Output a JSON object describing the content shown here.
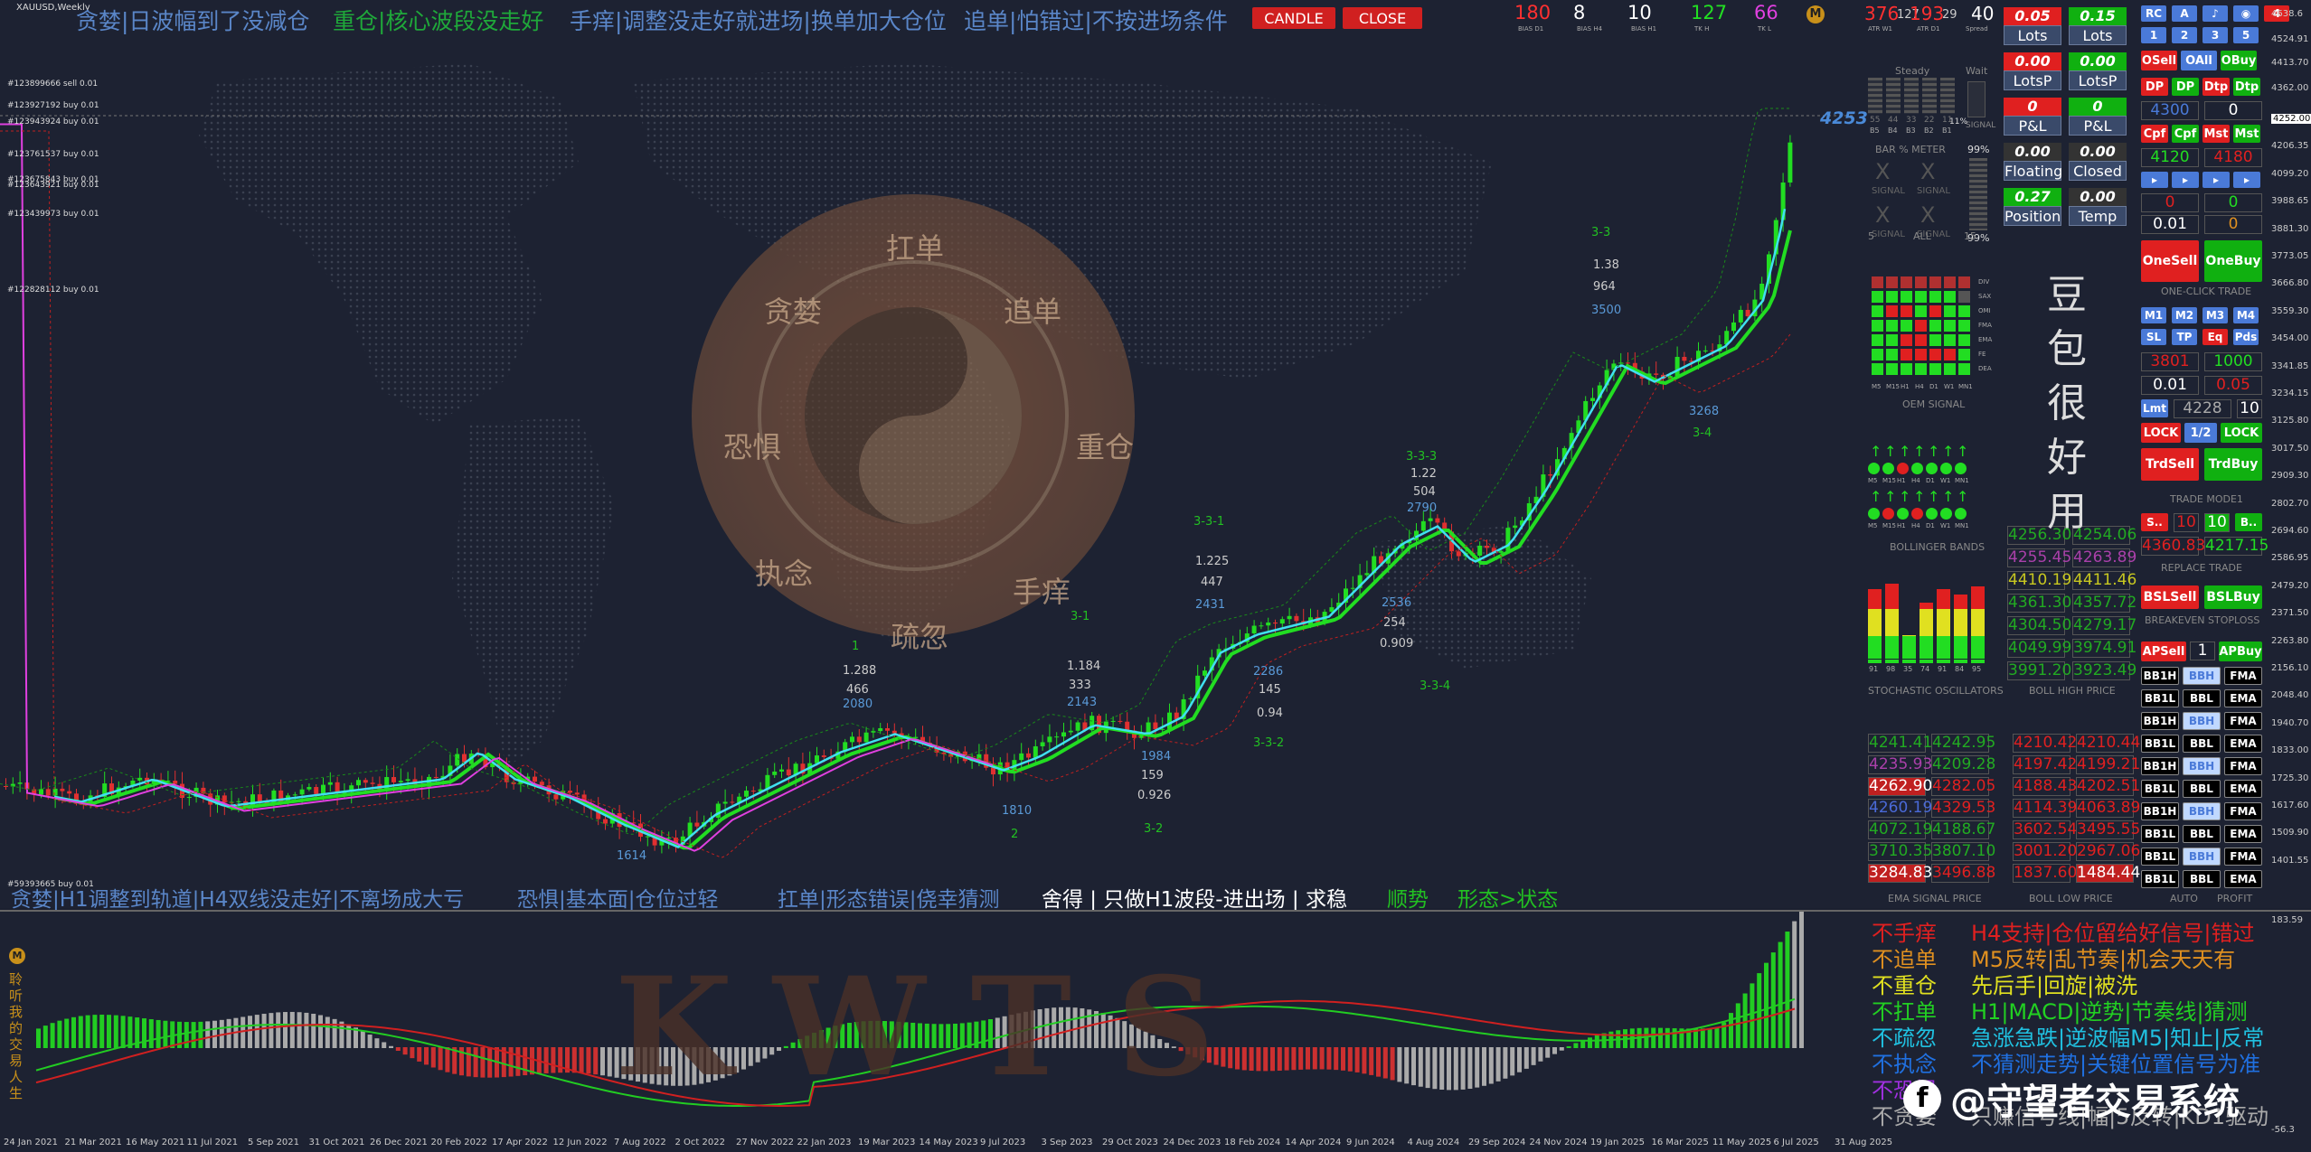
{
  "window_title": "XAUUSD,Weekly",
  "header": {
    "slogans": [
      {
        "text": "贪婪|日波幅到了没减仓",
        "color": "#5a86c8"
      },
      {
        "text": "重仓|核心波段没走好",
        "color": "#1fa83a"
      },
      {
        "text": "手痒|调整没走好就进场|换单加大仓位",
        "color": "#5a86c8"
      },
      {
        "text": "追单|怕错过|不按进场条件",
        "color": "#5a86c8"
      }
    ],
    "candle_button": "CANDLE",
    "close_button": "CLOSE",
    "bias": [
      {
        "value": "180",
        "label": "BIAS D1",
        "color": "#ff3030"
      },
      {
        "value": "8",
        "label": "BIAS H4",
        "color": "#ffffff"
      },
      {
        "value": "10",
        "label": "BIAS H1",
        "color": "#ffffff"
      },
      {
        "value": "127",
        "label": "TK H",
        "color": "#22e022"
      },
      {
        "value": "66",
        "label": "TK L",
        "color": "#e040e0"
      }
    ],
    "atr": {
      "w1": "376",
      "w1_sub": "127",
      "d1": "193",
      "d1_sub": "29",
      "spread": "40",
      "w1_label": "ATR W1",
      "d1_label": "ATR D1",
      "spread_label": "Spread"
    }
  },
  "bottom_slogans": [
    {
      "text": "贪婪|H1调整到轨道|H4双线没走好|不离场成大亏",
      "color": "#5a86c8"
    },
    {
      "text": "恐惧|基本面|仓位过轻",
      "color": "#5a86c8"
    },
    {
      "text": "扛单|形态错误|侥幸猜测",
      "color": "#5a86c8"
    },
    {
      "text": "舍得 | 只做H1波段-进出场 | 求稳",
      "color": "#ffffff"
    },
    {
      "text": "顺势",
      "color": "#22c022"
    },
    {
      "text": "形态>状态",
      "color": "#22c022"
    }
  ],
  "medallion": {
    "center": "扛单",
    "chars": [
      "贪婪",
      "追单",
      "重仓",
      "手痒",
      "疏忽",
      "执念",
      "恐惧"
    ]
  },
  "orders": [
    "#123899666 sell 0.01",
    "#123927192 buy 0.01",
    "#123943924 buy 0.01",
    "#123761537 buy 0.01",
    "#123675843 buy 0.01",
    "#123643921 buy 0.01",
    "#123439973 buy 0.01",
    "#122828112 buy 0.01",
    "#59393665 buy 0.01"
  ],
  "current_price": "4253",
  "chart_labels": [
    {
      "t": "1",
      "c": "#22c022"
    },
    {
      "t": "1.288",
      "c": "#ccc"
    },
    {
      "t": "466",
      "c": "#ccc"
    },
    {
      "t": "2080",
      "c": "#5a9ad8"
    },
    {
      "t": "1.184",
      "c": "#ccc"
    },
    {
      "t": "333",
      "c": "#ccc"
    },
    {
      "t": "2143",
      "c": "#5a9ad8"
    },
    {
      "t": "3-1",
      "c": "#22c022"
    },
    {
      "t": "3-3-1",
      "c": "#22c022"
    },
    {
      "t": "1.225",
      "c": "#ccc"
    },
    {
      "t": "447",
      "c": "#ccc"
    },
    {
      "t": "2431",
      "c": "#5a9ad8"
    },
    {
      "t": "2286",
      "c": "#5a9ad8"
    },
    {
      "t": "145",
      "c": "#ccc"
    },
    {
      "t": "0.94",
      "c": "#ccc"
    },
    {
      "t": "3-3-2",
      "c": "#22c022"
    },
    {
      "t": "1984",
      "c": "#5a9ad8"
    },
    {
      "t": "159",
      "c": "#ccc"
    },
    {
      "t": "0.926",
      "c": "#ccc"
    },
    {
      "t": "3-2",
      "c": "#22c022"
    },
    {
      "t": "1810",
      "c": "#5a9ad8"
    },
    {
      "t": "2",
      "c": "#22c022"
    },
    {
      "t": "1614",
      "c": "#5a9ad8"
    },
    {
      "t": "3-3-3",
      "c": "#22c022"
    },
    {
      "t": "1.22",
      "c": "#ccc"
    },
    {
      "t": "504",
      "c": "#ccc"
    },
    {
      "t": "2790",
      "c": "#5a9ad8"
    },
    {
      "t": "2536",
      "c": "#5a9ad8"
    },
    {
      "t": "254",
      "c": "#ccc"
    },
    {
      "t": "0.909",
      "c": "#ccc"
    },
    {
      "t": "3-3-4",
      "c": "#22c022"
    },
    {
      "t": "3-3",
      "c": "#22c022"
    },
    {
      "t": "1.38",
      "c": "#ccc"
    },
    {
      "t": "964",
      "c": "#ccc"
    },
    {
      "t": "3500",
      "c": "#5a9ad8"
    },
    {
      "t": "3268",
      "c": "#5a9ad8"
    },
    {
      "t": "3-4",
      "c": "#22c022"
    }
  ],
  "price_axis": [
    "4638.6",
    "4524.91",
    "4413.70",
    "4362.00",
    "4252.00",
    "4206.35",
    "4099.20",
    "3988.65",
    "3881.30",
    "3773.05",
    "3666.80",
    "3559.30",
    "3454.00",
    "3341.85",
    "3234.15",
    "3125.80",
    "3017.50",
    "2909.30",
    "2802.70",
    "2694.60",
    "2586.95",
    "2479.20",
    "2371.50",
    "2263.80",
    "2156.10",
    "2048.40",
    "1940.70",
    "1833.00",
    "1725.30",
    "1617.60",
    "1509.90",
    "1401.55",
    "183.59",
    "-56.3"
  ],
  "date_axis": [
    "24 Jan 2021",
    "21 Mar 2021",
    "16 May 2021",
    "11 Jul 2021",
    "5 Sep 2021",
    "31 Oct 2021",
    "26 Dec 2021",
    "20 Feb 2022",
    "17 Apr 2022",
    "12 Jun 2022",
    "7 Aug 2022",
    "2 Oct 2022",
    "27 Nov 2022",
    "22 Jan 2023",
    "19 Mar 2023",
    "14 May 2023",
    "9 Jul 2023",
    "3 Sep 2023",
    "29 Oct 2023",
    "24 Dec 2023",
    "18 Feb 2024",
    "14 Apr 2024",
    "9 Jun 2024",
    "4 Aug 2024",
    "29 Sep 2024",
    "24 Nov 2024",
    "19 Jan 2025",
    "16 Mar 2025",
    "11 May 2025",
    "6 Jul 2025",
    "31 Aug 2025"
  ],
  "panel": {
    "steady": "Steady",
    "wait": "Wait",
    "bar_meter": "BAR % METER",
    "signal": "SIGNAL",
    "all": "ALL",
    "pct1": "99%",
    "pct2": "99%",
    "pct3": "11%",
    "five": "5",
    "fifteen": "15",
    "meter_vals": [
      "55",
      "44",
      "33",
      "22",
      "11"
    ],
    "meter_labels": [
      "B5",
      "B4",
      "B3",
      "B2",
      "B1"
    ],
    "lots": [
      {
        "v": "0.05",
        "l": "Lots",
        "c": "#e02020"
      },
      {
        "v": "0.15",
        "l": "Lots",
        "c": "#10b010"
      }
    ],
    "lotsp": [
      {
        "v": "0.00",
        "l": "LotsP",
        "c": "#e02020"
      },
      {
        "v": "0.00",
        "l": "LotsP",
        "c": "#10b010"
      }
    ],
    "pl": [
      {
        "v": "0",
        "l": "P&L",
        "c": "#e02020"
      },
      {
        "v": "0",
        "l": "P&L",
        "c": "#10b010"
      }
    ],
    "floating": [
      {
        "v": "0.00",
        "l": "Floating",
        "c": "#333"
      },
      {
        "v": "0.00",
        "l": "Closed",
        "c": "#333"
      }
    ],
    "position": [
      {
        "v": "0.27",
        "l": "Position",
        "c": "#10b010"
      },
      {
        "v": "0.00",
        "l": "Temp",
        "c": "#333"
      }
    ],
    "oem_rows": [
      "DIV",
      "SAX",
      "OMI",
      "FMA",
      "EMA",
      "FE",
      "DEA"
    ],
    "oem_cols": [
      "M5",
      "M15",
      "H1",
      "H4",
      "D1",
      "W1",
      "MN1"
    ],
    "oem_label": "OEM SIGNAL",
    "bb_label": "BOLLINGER BANDS",
    "stoch_label": "STOCHASTIC OSCILLATORS",
    "stoch_cols": [
      "91",
      "98",
      "35",
      "74",
      "91",
      "84",
      "95"
    ],
    "side_text": [
      "豆",
      "包",
      "很",
      "好",
      "用"
    ],
    "bb_high_label": "BOLL HIGH PRICE",
    "bb_low_label": "BOLL LOW PRICE",
    "ema_label": "EMA SIGNAL PRICE",
    "bb_prices_left": [
      "4256.30",
      "4255.45",
      "4410.19",
      "4361.30",
      "4304.50",
      "4049.99",
      "3991.20"
    ],
    "bb_prices_right": [
      "4254.06",
      "4263.89",
      "4411.46",
      "4357.72",
      "4279.17",
      "3974.91",
      "3923.49"
    ],
    "ema_rows": [
      [
        "4241.41",
        "4242.95",
        "4210.42",
        "4210.44"
      ],
      [
        "4235.93",
        "4209.28",
        "4197.42",
        "4199.21"
      ],
      [
        "4262.90",
        "4282.05",
        "4188.43",
        "4202.51"
      ],
      [
        "4260.19",
        "4329.53",
        "4114.39",
        "4063.89"
      ],
      [
        "4072.19",
        "4188.67",
        "3602.54",
        "3495.55"
      ],
      [
        "3710.35",
        "3807.10",
        "3001.20",
        "2967.06"
      ],
      [
        "3284.83",
        "3496.88",
        "1837.60",
        "1484.44"
      ]
    ]
  },
  "right_panel": {
    "row1": [
      "RC",
      "A",
      "♪",
      "◉",
      "4"
    ],
    "row2": [
      "1",
      "2",
      "3",
      "5"
    ],
    "row3": [
      "OSell",
      "OAll",
      "OBuy"
    ],
    "row4": [
      "DP",
      "DP",
      "Dtp",
      "Dtp"
    ],
    "tp1": "4300",
    "tp1b": "0",
    "row5": [
      "Cpf",
      "Cpf",
      "Mst",
      "Mst"
    ],
    "tp2": "4120",
    "tp2b": "4180",
    "arrows": [
      "▸",
      "▸",
      "▸",
      "▸"
    ],
    "v0a": "0",
    "v0b": "0",
    "v001": "0.01",
    "v0c": "0",
    "onesell": "OneSell",
    "onebuy": "OneBuy",
    "oneclick": "ONE-CLICK TRADE",
    "m_row": [
      "M1",
      "M2",
      "M3",
      "M4"
    ],
    "sl_row": [
      "SL",
      "TP",
      "Eq",
      "Pds"
    ],
    "r3801": "3801",
    "r1000": "1000",
    "r001": "0.01",
    "r005": "0.05",
    "lmt": "Lmt",
    "r4228": "4228",
    "r10": "10",
    "lock": "LOCK",
    "half": "1/2",
    "lock2": "LOCK",
    "trdsell": "TrdSell",
    "trdbuy": "TrdBuy",
    "trademode": "TRADE MODE1",
    "s_btn": "S..",
    "s10": "10",
    "s10b": "10",
    "b_btn": "B..",
    "rep1": "4360.83",
    "rep2": "4217.15",
    "replace": "REPLACE TRADE",
    "bslsell": "BSLSell",
    "bslbuy": "BSLBuy",
    "breakeven": "BREAKEVEN STOPLOSS",
    "apsell": "APSell",
    "ap1": "1",
    "apbuy": "APBuy",
    "bb_rows": [
      [
        "BB1H",
        "BBH",
        "FMA"
      ],
      [
        "BB1L",
        "BBL",
        "EMA"
      ],
      [
        "BB1H",
        "BBH",
        "FMA"
      ],
      [
        "BB1L",
        "BBL",
        "EMA"
      ],
      [
        "BB1H",
        "BBH",
        "FMA"
      ],
      [
        "BB1L",
        "BBL",
        "EMA"
      ],
      [
        "BB1H",
        "BBH",
        "FMA"
      ],
      [
        "BB1L",
        "BBL",
        "EMA"
      ],
      [
        "BB1L",
        "BBH",
        "FMA"
      ],
      [
        "BB1L",
        "BBL",
        "EMA"
      ]
    ],
    "auto": "AUTO",
    "profit": "PROFIT"
  },
  "sub_panel": {
    "watermark": "KWTS",
    "left_vertical": "聆听我的交易人生",
    "rules": [
      {
        "k": "不手痒",
        "kc": "#e02020",
        "v": "H4支持|仓位留给好信号|错过",
        "vc": "#e02020"
      },
      {
        "k": "不追单",
        "kc": "#e09020",
        "v": "M5反转|乱节奏|机会天天有",
        "vc": "#e09020"
      },
      {
        "k": "不重仓",
        "kc": "#e0e020",
        "v": "先后手|回旋|被洗",
        "vc": "#e0e020"
      },
      {
        "k": "不扛单",
        "kc": "#22d022",
        "v": "H1|MACD|逆势|节奏线|猜测",
        "vc": "#22d022"
      },
      {
        "k": "不疏忽",
        "kc": "#20c0e0",
        "v": "急涨急跌|逆波幅M5|知止|反常",
        "vc": "#20c0e0"
      },
      {
        "k": "不执念",
        "kc": "#2070e0",
        "v": "不猜测走势|关键位置信号为准",
        "vc": "#2070e0"
      },
      {
        "k": "不恐惧",
        "kc": "#a030e0",
        "v": "",
        "vc": "#a030e0"
      },
      {
        "k": "不贪婪",
        "kc": "#aaaaaa",
        "v": "只赚信号线|幅|5反转|KD1驱动",
        "vc": "#aaaaaa"
      }
    ],
    "watermark_brand": "@守望者交易系统"
  }
}
